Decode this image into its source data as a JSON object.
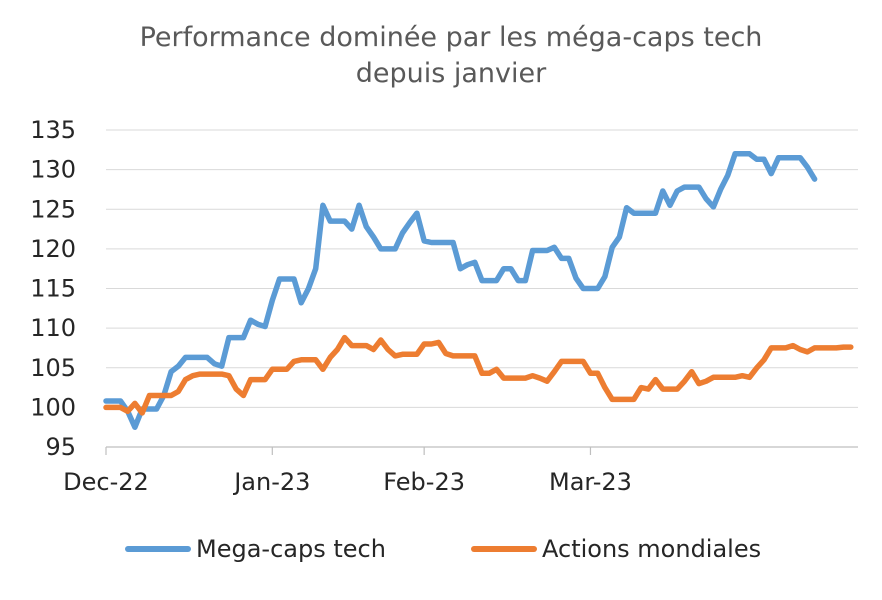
{
  "chart_data": {
    "type": "line",
    "title_lines": [
      "Performance dominée par les méga-caps tech",
      "depuis janvier"
    ],
    "xlabel": "",
    "ylabel": "",
    "ylim": [
      95,
      135
    ],
    "y_ticks": [
      95,
      100,
      105,
      110,
      115,
      120,
      125,
      130,
      135
    ],
    "x_ticks": [
      {
        "label": "Dec-22",
        "x": 0
      },
      {
        "label": "Jan-23",
        "x": 23
      },
      {
        "label": "Feb-23",
        "x": 44
      },
      {
        "label": "Mar-23",
        "x": 67
      }
    ],
    "grid": true,
    "legend_position": "bottom",
    "series": [
      {
        "name": "Mega-caps tech",
        "color": "#5b9bd5",
        "points": [
          [
            0,
            100.8
          ],
          [
            1,
            100.8
          ],
          [
            2,
            100.8
          ],
          [
            3,
            99.5
          ],
          [
            4,
            97.5
          ],
          [
            5,
            99.8
          ],
          [
            6,
            99.8
          ],
          [
            7,
            99.8
          ],
          [
            8,
            101.5
          ],
          [
            9,
            104.5
          ],
          [
            10,
            105.2
          ],
          [
            11,
            106.3
          ],
          [
            12,
            106.3
          ],
          [
            13,
            106.3
          ],
          [
            14,
            106.3
          ],
          [
            15,
            105.5
          ],
          [
            16,
            105.2
          ],
          [
            17,
            108.8
          ],
          [
            18,
            108.8
          ],
          [
            19,
            108.8
          ],
          [
            20,
            111.0
          ],
          [
            21,
            110.5
          ],
          [
            22,
            110.2
          ],
          [
            23,
            113.5
          ],
          [
            24,
            116.2
          ],
          [
            25,
            116.2
          ],
          [
            26,
            116.2
          ],
          [
            27,
            113.2
          ],
          [
            28,
            115.0
          ],
          [
            29,
            117.5
          ],
          [
            30,
            125.5
          ],
          [
            31,
            123.5
          ],
          [
            32,
            123.5
          ],
          [
            33,
            123.5
          ],
          [
            34,
            122.5
          ],
          [
            35,
            125.5
          ],
          [
            36,
            122.8
          ],
          [
            37,
            121.5
          ],
          [
            38,
            120.0
          ],
          [
            39,
            120.0
          ],
          [
            40,
            120.0
          ],
          [
            41,
            122.0
          ],
          [
            42,
            123.3
          ],
          [
            43,
            124.5
          ],
          [
            44,
            121.0
          ],
          [
            45,
            120.8
          ],
          [
            46,
            120.8
          ],
          [
            47,
            120.8
          ],
          [
            48,
            120.8
          ],
          [
            49,
            117.5
          ],
          [
            50,
            118.0
          ],
          [
            51,
            118.3
          ],
          [
            52,
            116.0
          ],
          [
            53,
            116.0
          ],
          [
            54,
            116.0
          ],
          [
            55,
            117.5
          ],
          [
            56,
            117.5
          ],
          [
            57,
            116.0
          ],
          [
            58,
            116.0
          ],
          [
            59,
            119.8
          ],
          [
            60,
            119.8
          ],
          [
            61,
            119.8
          ],
          [
            62,
            120.2
          ],
          [
            63,
            118.8
          ],
          [
            64,
            118.8
          ],
          [
            65,
            116.3
          ],
          [
            66,
            115.0
          ],
          [
            67,
            115.0
          ],
          [
            68,
            115.0
          ],
          [
            69,
            116.5
          ],
          [
            70,
            120.2
          ],
          [
            71,
            121.5
          ],
          [
            72,
            125.2
          ],
          [
            73,
            124.5
          ],
          [
            74,
            124.5
          ],
          [
            75,
            124.5
          ],
          [
            76,
            124.5
          ],
          [
            77,
            127.3
          ],
          [
            78,
            125.5
          ],
          [
            79,
            127.3
          ],
          [
            80,
            127.8
          ],
          [
            81,
            127.8
          ],
          [
            82,
            127.8
          ],
          [
            83,
            126.3
          ],
          [
            84,
            125.3
          ],
          [
            85,
            127.5
          ],
          [
            86,
            129.3
          ],
          [
            87,
            132.0
          ],
          [
            88,
            132.0
          ],
          [
            89,
            132.0
          ],
          [
            90,
            131.3
          ],
          [
            91,
            131.3
          ],
          [
            92,
            129.5
          ],
          [
            93,
            131.5
          ],
          [
            94,
            131.5
          ],
          [
            95,
            131.5
          ],
          [
            96,
            131.5
          ],
          [
            97,
            130.3
          ],
          [
            98,
            128.8
          ]
        ]
      },
      {
        "name": "Actions mondiales",
        "color": "#ed7d31",
        "points": [
          [
            0,
            100.0
          ],
          [
            1,
            100.0
          ],
          [
            2,
            100.0
          ],
          [
            3,
            99.5
          ],
          [
            4,
            100.5
          ],
          [
            5,
            99.3
          ],
          [
            6,
            101.5
          ],
          [
            7,
            101.5
          ],
          [
            8,
            101.5
          ],
          [
            9,
            101.5
          ],
          [
            10,
            102.0
          ],
          [
            11,
            103.5
          ],
          [
            12,
            104.0
          ],
          [
            13,
            104.2
          ],
          [
            14,
            104.2
          ],
          [
            15,
            104.2
          ],
          [
            16,
            104.2
          ],
          [
            17,
            104.0
          ],
          [
            18,
            102.3
          ],
          [
            19,
            101.5
          ],
          [
            20,
            103.5
          ],
          [
            21,
            103.5
          ],
          [
            22,
            103.5
          ],
          [
            23,
            104.8
          ],
          [
            24,
            104.8
          ],
          [
            25,
            104.8
          ],
          [
            26,
            105.8
          ],
          [
            27,
            106.0
          ],
          [
            28,
            106.0
          ],
          [
            29,
            106.0
          ],
          [
            30,
            104.8
          ],
          [
            31,
            106.3
          ],
          [
            32,
            107.3
          ],
          [
            33,
            108.8
          ],
          [
            34,
            107.8
          ],
          [
            35,
            107.8
          ],
          [
            36,
            107.8
          ],
          [
            37,
            107.3
          ],
          [
            38,
            108.5
          ],
          [
            39,
            107.3
          ],
          [
            40,
            106.5
          ],
          [
            41,
            106.7
          ],
          [
            42,
            106.7
          ],
          [
            43,
            106.7
          ],
          [
            44,
            108.0
          ],
          [
            45,
            108.0
          ],
          [
            46,
            108.2
          ],
          [
            47,
            106.8
          ],
          [
            48,
            106.5
          ],
          [
            49,
            106.5
          ],
          [
            50,
            106.5
          ],
          [
            51,
            106.5
          ],
          [
            52,
            104.3
          ],
          [
            53,
            104.3
          ],
          [
            54,
            104.8
          ],
          [
            55,
            103.7
          ],
          [
            56,
            103.7
          ],
          [
            57,
            103.7
          ],
          [
            58,
            103.7
          ],
          [
            59,
            104.0
          ],
          [
            60,
            103.7
          ],
          [
            61,
            103.3
          ],
          [
            62,
            104.5
          ],
          [
            63,
            105.8
          ],
          [
            64,
            105.8
          ],
          [
            65,
            105.8
          ],
          [
            66,
            105.8
          ],
          [
            67,
            104.3
          ],
          [
            68,
            104.3
          ],
          [
            69,
            102.5
          ],
          [
            70,
            101.0
          ],
          [
            71,
            101.0
          ],
          [
            72,
            101.0
          ],
          [
            73,
            101.0
          ],
          [
            74,
            102.5
          ],
          [
            75,
            102.3
          ],
          [
            76,
            103.5
          ],
          [
            77,
            102.3
          ],
          [
            78,
            102.3
          ],
          [
            79,
            102.3
          ],
          [
            80,
            103.3
          ],
          [
            81,
            104.5
          ],
          [
            82,
            103.0
          ],
          [
            83,
            103.3
          ],
          [
            84,
            103.8
          ],
          [
            85,
            103.8
          ],
          [
            86,
            103.8
          ],
          [
            87,
            103.8
          ],
          [
            88,
            104.0
          ],
          [
            89,
            103.8
          ],
          [
            90,
            105.0
          ],
          [
            91,
            106.0
          ],
          [
            92,
            107.5
          ],
          [
            93,
            107.5
          ],
          [
            94,
            107.5
          ],
          [
            95,
            107.8
          ],
          [
            96,
            107.3
          ],
          [
            97,
            107.0
          ],
          [
            98,
            107.5
          ],
          [
            99,
            107.5
          ],
          [
            100,
            107.5
          ],
          [
            101,
            107.5
          ],
          [
            102,
            107.6
          ],
          [
            103,
            107.6
          ]
        ]
      }
    ]
  }
}
